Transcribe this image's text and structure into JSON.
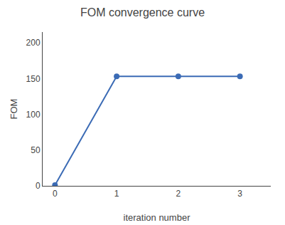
{
  "chart_data": {
    "type": "line",
    "title": "FOM convergence curve",
    "xlabel": "iteration number",
    "ylabel": "FOM",
    "x": [
      0,
      1,
      2,
      3
    ],
    "values": [
      1,
      153,
      153,
      153
    ],
    "color": "#3B6BB5",
    "marker": "circle",
    "xlim": [
      -0.2,
      3.5
    ],
    "xticks": [
      0,
      1,
      2,
      3
    ],
    "ylim": [
      0,
      215
    ],
    "yticks": [
      0,
      50,
      100,
      150,
      200
    ],
    "grid": false
  }
}
